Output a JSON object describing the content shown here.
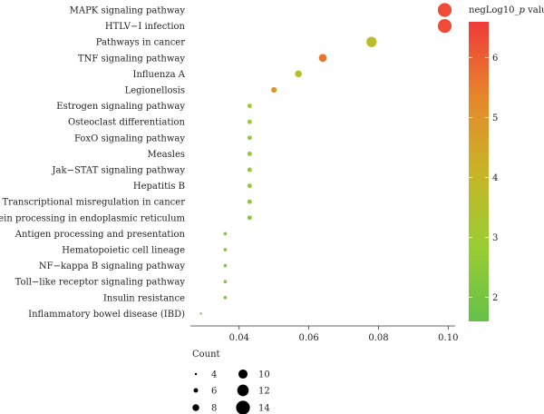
{
  "chart_data": {
    "type": "scatter",
    "categories": [
      "MAPK signaling pathway",
      "HTLV−I infection",
      "Pathways in cancer",
      "TNF signaling pathway",
      "Influenza A",
      "Legionellosis",
      "Estrogen signaling pathway",
      "Osteoclast differentiation",
      "FoxO signaling pathway",
      "Measles",
      "Jak−STAT signaling pathway",
      "Hepatitis B",
      "Transcriptional misregulation in cancer",
      "Protein processing in endoplasmic reticulum",
      "Antigen processing and presentation",
      "Hematopoietic cell lineage",
      "NF−kappa B signaling pathway",
      "Toll−like receptor signaling pathway",
      "Insulin resistance",
      "Inflammatory bowel disease (IBD)"
    ],
    "points": [
      {
        "category": "MAPK signaling pathway",
        "x": 0.099,
        "count": 14,
        "neglog10p": 6.3
      },
      {
        "category": "HTLV−I infection",
        "x": 0.099,
        "count": 14,
        "neglog10p": 6.3
      },
      {
        "category": "Pathways in cancer",
        "x": 0.078,
        "count": 11,
        "neglog10p": 3.7
      },
      {
        "category": "TNF signaling pathway",
        "x": 0.064,
        "count": 9,
        "neglog10p": 5.6
      },
      {
        "category": "Influenza A",
        "x": 0.057,
        "count": 8,
        "neglog10p": 3.5
      },
      {
        "category": "Legionellosis",
        "x": 0.05,
        "count": 7,
        "neglog10p": 5.0
      },
      {
        "category": "Estrogen signaling pathway",
        "x": 0.043,
        "count": 6,
        "neglog10p": 2.9
      },
      {
        "category": "Osteoclast differentiation",
        "x": 0.043,
        "count": 6,
        "neglog10p": 2.8
      },
      {
        "category": "FoxO signaling pathway",
        "x": 0.043,
        "count": 6,
        "neglog10p": 2.7
      },
      {
        "category": "Measles",
        "x": 0.043,
        "count": 6,
        "neglog10p": 2.7
      },
      {
        "category": "Jak−STAT signaling pathway",
        "x": 0.043,
        "count": 6,
        "neglog10p": 2.6
      },
      {
        "category": "Hepatitis B",
        "x": 0.043,
        "count": 6,
        "neglog10p": 2.6
      },
      {
        "category": "Transcriptional misregulation in cancer",
        "x": 0.043,
        "count": 6,
        "neglog10p": 2.5
      },
      {
        "category": "Protein processing in endoplasmic reticulum",
        "x": 0.043,
        "count": 6,
        "neglog10p": 2.4
      },
      {
        "category": "Antigen processing and presentation",
        "x": 0.036,
        "count": 5,
        "neglog10p": 2.4
      },
      {
        "category": "Hematopoietic cell lineage",
        "x": 0.036,
        "count": 5,
        "neglog10p": 2.3
      },
      {
        "category": "NF−kappa B signaling pathway",
        "x": 0.036,
        "count": 5,
        "neglog10p": 2.3
      },
      {
        "category": "Toll−like receptor signaling pathway",
        "x": 0.036,
        "count": 5,
        "neglog10p": 2.2
      },
      {
        "category": "Insulin resistance",
        "x": 0.036,
        "count": 5,
        "neglog10p": 2.2
      },
      {
        "category": "Inflammatory bowel disease (IBD)",
        "x": 0.029,
        "count": 4,
        "neglog10p": 2.0
      }
    ],
    "xlim": [
      0.026,
      0.102
    ],
    "x_ticks": [
      0.04,
      0.06,
      0.08,
      0.1
    ],
    "x_tick_labels": [
      "0.04",
      "0.06",
      "0.08",
      "0.10"
    ],
    "xlabel": "",
    "ylabel": "",
    "title": "",
    "grid": false,
    "color_legend": {
      "title_prefix": "negLog10_",
      "title_italic": "p",
      "title_suffix": " value",
      "range": [
        1.6,
        6.6
      ],
      "ticks": [
        2,
        3,
        4,
        5,
        6
      ],
      "tick_labels": [
        "2",
        "3",
        "4",
        "5",
        "6"
      ],
      "palette": [
        "#66c04a",
        "#9acd32",
        "#c8b428",
        "#e6862a",
        "#f03a3a"
      ],
      "placement": "right"
    },
    "size_legend": {
      "title": "Count",
      "entries": [
        {
          "label": "4",
          "value": 4
        },
        {
          "label": "6",
          "value": 6
        },
        {
          "label": "8",
          "value": 8
        },
        {
          "label": "10",
          "value": 10
        },
        {
          "label": "12",
          "value": 12
        },
        {
          "label": "14",
          "value": 14
        }
      ],
      "placement": "bottom-left"
    }
  }
}
